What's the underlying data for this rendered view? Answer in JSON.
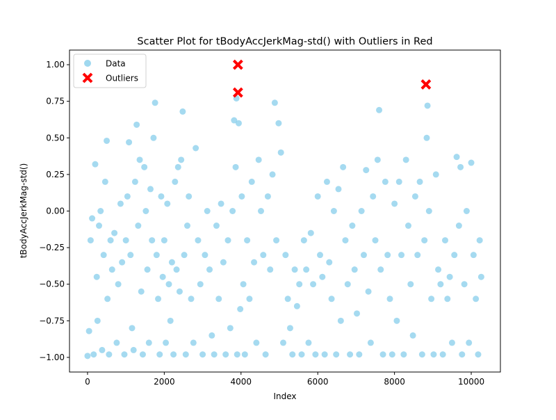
{
  "chart_data": {
    "type": "scatter",
    "title": "Scatter Plot for tBodyAccJerkMag-std() with Outliers in Red",
    "xlabel": "Index",
    "ylabel": "tBodyAccJerkMag-std()",
    "xlim": [
      -470,
      10760
    ],
    "ylim": [
      -1.1,
      1.1
    ],
    "xticks": [
      0,
      2000,
      4000,
      6000,
      8000,
      10000
    ],
    "xtick_labels": [
      "0",
      "2000",
      "4000",
      "6000",
      "8000",
      "10000"
    ],
    "yticks": [
      -1.0,
      -0.75,
      -0.5,
      -0.25,
      0.0,
      0.25,
      0.5,
      0.75,
      1.0
    ],
    "ytick_labels": [
      "−1.00",
      "−0.75",
      "−0.50",
      "−0.25",
      "0.00",
      "0.25",
      "0.50",
      "0.75",
      "1.00"
    ],
    "grid": false,
    "legend_position": "upper-left",
    "series": [
      {
        "name": "Data",
        "marker": "circle",
        "color": "#87CEEB",
        "alpha": 0.75,
        "points": [
          [
            0,
            -0.99
          ],
          [
            40,
            -0.82
          ],
          [
            80,
            -0.2
          ],
          [
            120,
            -0.05
          ],
          [
            160,
            -0.98
          ],
          [
            200,
            0.32
          ],
          [
            240,
            -0.45
          ],
          [
            260,
            -0.75
          ],
          [
            300,
            -0.1
          ],
          [
            340,
            0.0
          ],
          [
            380,
            -0.95
          ],
          [
            420,
            -0.3
          ],
          [
            460,
            0.2
          ],
          [
            500,
            0.48
          ],
          [
            520,
            -0.6
          ],
          [
            560,
            -0.98
          ],
          [
            600,
            -0.2
          ],
          [
            640,
            -0.4
          ],
          [
            700,
            -0.15
          ],
          [
            760,
            -0.9
          ],
          [
            800,
            -0.5
          ],
          [
            860,
            0.05
          ],
          [
            900,
            -0.35
          ],
          [
            960,
            -0.98
          ],
          [
            1000,
            -0.2
          ],
          [
            1040,
            0.1
          ],
          [
            1080,
            0.47
          ],
          [
            1120,
            -0.3
          ],
          [
            1160,
            -0.8
          ],
          [
            1200,
            -0.95
          ],
          [
            1240,
            0.2
          ],
          [
            1280,
            0.59
          ],
          [
            1320,
            -0.1
          ],
          [
            1360,
            0.35
          ],
          [
            1400,
            -0.55
          ],
          [
            1440,
            -0.98
          ],
          [
            1480,
            0.3
          ],
          [
            1520,
            0.0
          ],
          [
            1560,
            -0.4
          ],
          [
            1600,
            -0.9
          ],
          [
            1640,
            0.15
          ],
          [
            1680,
            -0.2
          ],
          [
            1720,
            0.5
          ],
          [
            1760,
            0.74
          ],
          [
            1800,
            -0.3
          ],
          [
            1840,
            -0.6
          ],
          [
            1880,
            -0.98
          ],
          [
            1920,
            0.1
          ],
          [
            1960,
            -0.45
          ],
          [
            2000,
            -0.2
          ],
          [
            2040,
            -0.9
          ],
          [
            2080,
            0.05
          ],
          [
            2120,
            -0.5
          ],
          [
            2160,
            -0.75
          ],
          [
            2200,
            -0.35
          ],
          [
            2240,
            -0.98
          ],
          [
            2280,
            0.2
          ],
          [
            2320,
            -0.4
          ],
          [
            2360,
            0.3
          ],
          [
            2400,
            -0.55
          ],
          [
            2440,
            0.35
          ],
          [
            2480,
            0.68
          ],
          [
            2520,
            -0.3
          ],
          [
            2560,
            -0.98
          ],
          [
            2600,
            -0.1
          ],
          [
            2640,
            0.1
          ],
          [
            2700,
            -0.6
          ],
          [
            2760,
            -0.9
          ],
          [
            2820,
            0.43
          ],
          [
            2880,
            -0.2
          ],
          [
            2940,
            -0.5
          ],
          [
            3000,
            -0.98
          ],
          [
            3060,
            -0.3
          ],
          [
            3120,
            0.0
          ],
          [
            3180,
            -0.4
          ],
          [
            3240,
            -0.85
          ],
          [
            3300,
            -0.98
          ],
          [
            3360,
            -0.1
          ],
          [
            3420,
            -0.6
          ],
          [
            3480,
            0.05
          ],
          [
            3540,
            -0.35
          ],
          [
            3600,
            -0.98
          ],
          [
            3660,
            -0.2
          ],
          [
            3720,
            -0.8
          ],
          [
            3780,
            0.0
          ],
          [
            3820,
            0.62
          ],
          [
            3860,
            0.3
          ],
          [
            3880,
            0.77
          ],
          [
            3900,
            -0.98
          ],
          [
            3940,
            0.6
          ],
          [
            3980,
            -0.67
          ],
          [
            4020,
            0.1
          ],
          [
            4060,
            -0.5
          ],
          [
            4100,
            -0.98
          ],
          [
            4160,
            -0.2
          ],
          [
            4220,
            -0.6
          ],
          [
            4280,
            0.2
          ],
          [
            4340,
            -0.35
          ],
          [
            4400,
            -0.9
          ],
          [
            4460,
            0.35
          ],
          [
            4520,
            0.0
          ],
          [
            4580,
            -0.3
          ],
          [
            4640,
            -0.98
          ],
          [
            4700,
            0.1
          ],
          [
            4760,
            -0.4
          ],
          [
            4820,
            0.25
          ],
          [
            4880,
            0.74
          ],
          [
            4920,
            -0.2
          ],
          [
            4980,
            0.6
          ],
          [
            5040,
            0.4
          ],
          [
            5100,
            -0.9
          ],
          [
            5160,
            -0.3
          ],
          [
            5220,
            -0.6
          ],
          [
            5280,
            -0.8
          ],
          [
            5340,
            -0.98
          ],
          [
            5400,
            -0.4
          ],
          [
            5460,
            -0.65
          ],
          [
            5520,
            -0.5
          ],
          [
            5580,
            -0.98
          ],
          [
            5640,
            -0.2
          ],
          [
            5700,
            -0.4
          ],
          [
            5760,
            -0.9
          ],
          [
            5820,
            -0.15
          ],
          [
            5880,
            -0.5
          ],
          [
            5940,
            -0.98
          ],
          [
            6000,
            0.1
          ],
          [
            6060,
            -0.3
          ],
          [
            6120,
            -0.45
          ],
          [
            6180,
            -0.98
          ],
          [
            6240,
            0.2
          ],
          [
            6300,
            -0.35
          ],
          [
            6360,
            -0.6
          ],
          [
            6420,
            0.0
          ],
          [
            6480,
            -0.98
          ],
          [
            6540,
            0.15
          ],
          [
            6600,
            -0.75
          ],
          [
            6660,
            0.3
          ],
          [
            6720,
            -0.2
          ],
          [
            6780,
            -0.5
          ],
          [
            6840,
            -0.98
          ],
          [
            6900,
            -0.1
          ],
          [
            6960,
            -0.4
          ],
          [
            7020,
            -0.7
          ],
          [
            7080,
            -0.98
          ],
          [
            7140,
            0.0
          ],
          [
            7200,
            -0.3
          ],
          [
            7260,
            0.28
          ],
          [
            7320,
            -0.55
          ],
          [
            7380,
            -0.9
          ],
          [
            7440,
            0.1
          ],
          [
            7500,
            -0.2
          ],
          [
            7560,
            0.35
          ],
          [
            7600,
            0.69
          ],
          [
            7640,
            -0.4
          ],
          [
            7700,
            -0.98
          ],
          [
            7760,
            0.2
          ],
          [
            7820,
            -0.3
          ],
          [
            7880,
            -0.6
          ],
          [
            7940,
            -0.98
          ],
          [
            8000,
            0.05
          ],
          [
            8060,
            -0.75
          ],
          [
            8120,
            0.2
          ],
          [
            8180,
            -0.3
          ],
          [
            8240,
            -0.98
          ],
          [
            8300,
            0.35
          ],
          [
            8360,
            -0.1
          ],
          [
            8420,
            -0.5
          ],
          [
            8480,
            -0.85
          ],
          [
            8540,
            0.1
          ],
          [
            8600,
            -0.3
          ],
          [
            8660,
            0.2
          ],
          [
            8720,
            -0.98
          ],
          [
            8780,
            -0.2
          ],
          [
            8840,
            0.5
          ],
          [
            8860,
            0.72
          ],
          [
            8900,
            0.0
          ],
          [
            8960,
            -0.6
          ],
          [
            9020,
            -0.98
          ],
          [
            9080,
            0.25
          ],
          [
            9140,
            -0.4
          ],
          [
            9200,
            -0.5
          ],
          [
            9260,
            -0.98
          ],
          [
            9320,
            -0.2
          ],
          [
            9380,
            -0.6
          ],
          [
            9440,
            -0.45
          ],
          [
            9500,
            -0.9
          ],
          [
            9560,
            -0.3
          ],
          [
            9620,
            0.37
          ],
          [
            9680,
            -0.1
          ],
          [
            9720,
            0.3
          ],
          [
            9760,
            -0.98
          ],
          [
            9820,
            -0.5
          ],
          [
            9880,
            0.0
          ],
          [
            9940,
            -0.9
          ],
          [
            10000,
            0.33
          ],
          [
            10060,
            -0.3
          ],
          [
            10120,
            -0.6
          ],
          [
            10180,
            -0.98
          ],
          [
            10220,
            -0.2
          ],
          [
            10260,
            -0.45
          ]
        ]
      },
      {
        "name": "Outliers",
        "marker": "x",
        "color": "#FF0000",
        "points": [
          [
            3920,
            1.0
          ],
          [
            3920,
            0.81
          ],
          [
            8820,
            0.865
          ]
        ]
      }
    ]
  }
}
